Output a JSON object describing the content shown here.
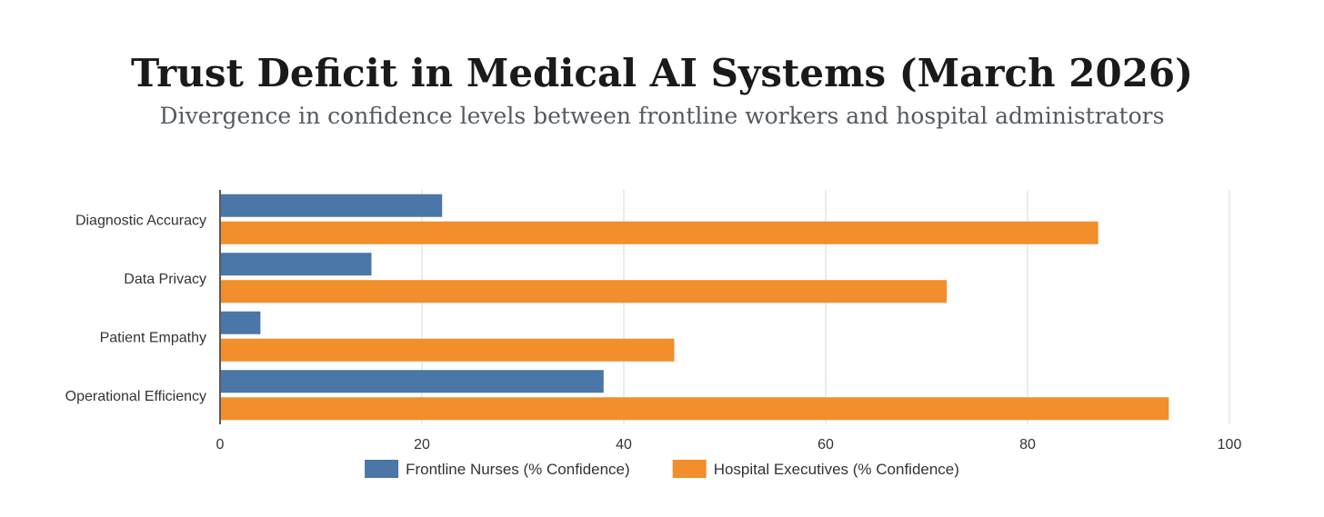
{
  "chart_data": {
    "type": "bar",
    "orientation": "horizontal",
    "title": "Trust Deficit in Medical AI Systems (March 2026)",
    "subtitle": "Divergence in confidence levels between frontline workers and hospital administrators",
    "categories": [
      "Diagnostic Accuracy",
      "Data Privacy",
      "Patient Empathy",
      "Operational Efficiency"
    ],
    "series": [
      {
        "name": "Frontline Nurses (% Confidence)",
        "color": "#4a76a8",
        "values": [
          22,
          15,
          4,
          38
        ]
      },
      {
        "name": "Hospital Executives (% Confidence)",
        "color": "#f28e2b",
        "values": [
          87,
          72,
          45,
          94
        ]
      }
    ],
    "xlim": [
      0,
      100
    ],
    "xticks": [
      0,
      20,
      40,
      60,
      80,
      100
    ],
    "xlabel": "",
    "ylabel": "",
    "grid": true,
    "legend": "bottom-center"
  }
}
